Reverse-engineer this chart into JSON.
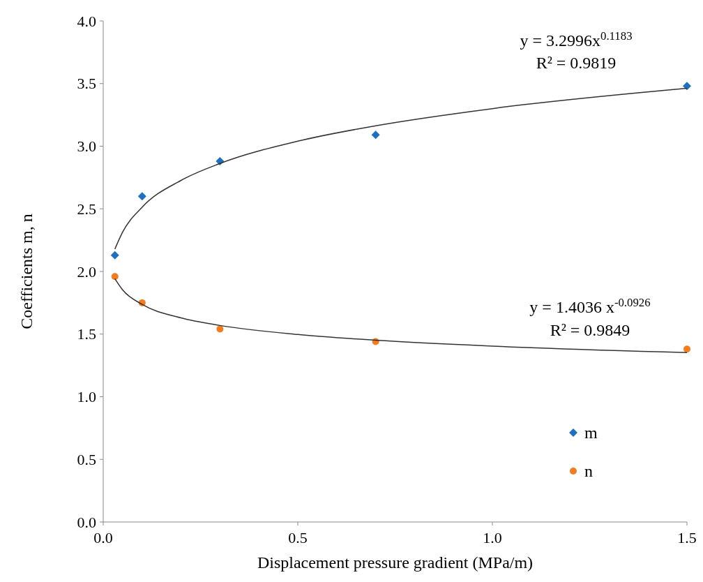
{
  "chart_data": {
    "type": "scatter",
    "xlabel": "Displacement pressure gradient (MPa/m)",
    "ylabel": "Coefficients m, n",
    "xlim": [
      0,
      1.5
    ],
    "ylim": [
      0,
      4
    ],
    "xticks": [
      {
        "value": 0,
        "label": "0.0"
      },
      0.5,
      {
        "value": 1,
        "label": "1.0"
      },
      1.5
    ],
    "yticks": [
      {
        "value": 0,
        "label": "0.0"
      },
      0.5,
      {
        "value": 1,
        "label": "1.0"
      },
      1.5,
      {
        "value": 2,
        "label": "2.0"
      },
      2.5,
      {
        "value": 3,
        "label": "3.0"
      },
      3.5,
      {
        "value": 4,
        "label": "4.0"
      }
    ],
    "grid": false,
    "legend": "bottom right",
    "series": [
      {
        "name": "m",
        "color": "#1f70c1",
        "marker": "diamond",
        "x": [
          0.03,
          0.1,
          0.3,
          0.7,
          1.5
        ],
        "values": [
          2.13,
          2.6,
          2.88,
          3.09,
          3.48
        ]
      },
      {
        "name": "n",
        "color": "#f47b20",
        "marker": "circle",
        "x": [
          0.03,
          0.1,
          0.3,
          0.7,
          1.5
        ],
        "values": [
          1.96,
          1.75,
          1.54,
          1.44,
          1.38
        ]
      },
      {
        "type": "line",
        "color": "#333333",
        "marker": "none",
        "x": [
          0.03,
          0.05,
          0.1,
          0.2,
          0.3,
          0.5,
          0.7,
          1.0,
          1.5
        ],
        "values": [
          2.179,
          2.315,
          2.513,
          2.727,
          2.862,
          3.04,
          3.163,
          3.3,
          3.462
        ]
      },
      {
        "type": "line",
        "color": "#333333",
        "marker": "none",
        "x": [
          0.03,
          0.05,
          0.1,
          0.2,
          0.3,
          0.5,
          0.7,
          1.0,
          1.5
        ],
        "values": [
          1.942,
          1.852,
          1.737,
          1.629,
          1.569,
          1.497,
          1.451,
          1.404,
          1.352
        ]
      }
    ],
    "annotations": [
      "y = 3.2996x$^{0.1183}$",
      "R² = 0.9819",
      "y = 1.4036 x$^{-0.0926}$",
      "R² = 0.9849"
    ]
  }
}
